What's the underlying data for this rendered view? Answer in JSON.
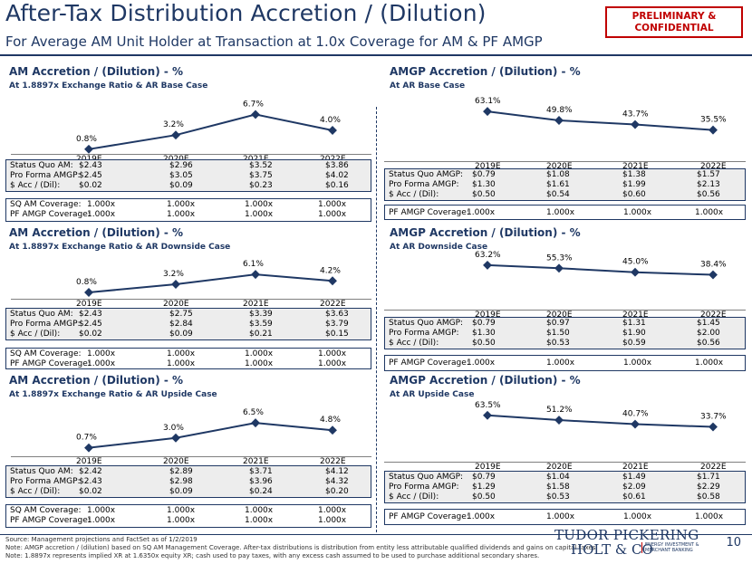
{
  "header": {
    "title": "After-Tax Distribution Accretion / (Dilution)",
    "subtitle": "For Average AM Unit Holder at Transaction at 1.0x Coverage for AM & PF AMGP",
    "stamp": [
      "PRELIMINARY &",
      "CONFIDENTIAL"
    ]
  },
  "colors": {
    "navy": "#1f3864",
    "red": "#c00000",
    "table_bg": "#ededed"
  },
  "panels": {
    "am_base": {
      "title": "AM Accretion / (Dilution) - %",
      "subtitle": "At 1.8897x Exchange Ratio & AR Base Case",
      "years": [
        "2019E",
        "2020E",
        "2021E",
        "2022E"
      ],
      "point_labels": [
        "0.8%",
        "3.2%",
        "6.7%",
        "4.0%"
      ],
      "rows": [
        {
          "label": "Status Quo AM:",
          "vals": [
            "$2.43",
            "$2.96",
            "$3.52",
            "$3.86"
          ]
        },
        {
          "label": "Pro Forma AMGP:",
          "vals": [
            "$2.45",
            "$3.05",
            "$3.75",
            "$4.02"
          ]
        },
        {
          "label": "$ Acc / (Dil):",
          "vals": [
            "$0.02",
            "$0.09",
            "$0.23",
            "$0.16"
          ]
        }
      ],
      "coverage": [
        {
          "label": "SQ AM Coverage:",
          "vals": [
            "1.000x",
            "1.000x",
            "1.000x",
            "1.000x"
          ]
        },
        {
          "label": "PF AMGP Coverage:",
          "vals": [
            "1.000x",
            "1.000x",
            "1.000x",
            "1.000x"
          ]
        }
      ]
    },
    "amgp_base": {
      "title": "AMGP Accretion / (Dilution) - %",
      "subtitle": "At AR Base Case",
      "years": [
        "2019E",
        "2020E",
        "2021E",
        "2022E"
      ],
      "point_labels": [
        "63.1%",
        "49.8%",
        "43.7%",
        "35.5%"
      ],
      "rows": [
        {
          "label": "Status Quo AMGP:",
          "vals": [
            "$0.79",
            "$1.08",
            "$1.38",
            "$1.57"
          ]
        },
        {
          "label": "Pro Forma AMGP:",
          "vals": [
            "$1.30",
            "$1.61",
            "$1.99",
            "$2.13"
          ]
        },
        {
          "label": "$ Acc / (Dil):",
          "vals": [
            "$0.50",
            "$0.54",
            "$0.60",
            "$0.56"
          ]
        }
      ],
      "coverage": [
        {
          "label": "PF AMGP Coverage:",
          "vals": [
            "1.000x",
            "1.000x",
            "1.000x",
            "1.000x"
          ]
        }
      ]
    },
    "am_down": {
      "title": "AM Accretion / (Dilution) - %",
      "subtitle": "At 1.8897x Exchange Ratio & AR Downside Case",
      "years": [
        "2019E",
        "2020E",
        "2021E",
        "2022E"
      ],
      "point_labels": [
        "0.8%",
        "3.2%",
        "6.1%",
        "4.2%"
      ],
      "rows": [
        {
          "label": "Status Quo AM:",
          "vals": [
            "$2.43",
            "$2.75",
            "$3.39",
            "$3.63"
          ]
        },
        {
          "label": "Pro Forma AMGP:",
          "vals": [
            "$2.45",
            "$2.84",
            "$3.59",
            "$3.79"
          ]
        },
        {
          "label": "$ Acc / (Dil):",
          "vals": [
            "$0.02",
            "$0.09",
            "$0.21",
            "$0.15"
          ]
        }
      ],
      "coverage": [
        {
          "label": "SQ AM Coverage:",
          "vals": [
            "1.000x",
            "1.000x",
            "1.000x",
            "1.000x"
          ]
        },
        {
          "label": "PF AMGP Coverage:",
          "vals": [
            "1.000x",
            "1.000x",
            "1.000x",
            "1.000x"
          ]
        }
      ]
    },
    "amgp_down": {
      "title": "AMGP Accretion / (Dilution) - %",
      "subtitle": "At AR Downside Case",
      "years": [
        "2019E",
        "2020E",
        "2021E",
        "2022E"
      ],
      "point_labels": [
        "63.2%",
        "55.3%",
        "45.0%",
        "38.4%"
      ],
      "rows": [
        {
          "label": "Status Quo AMGP:",
          "vals": [
            "$0.79",
            "$0.97",
            "$1.31",
            "$1.45"
          ]
        },
        {
          "label": "Pro Forma AMGP:",
          "vals": [
            "$1.30",
            "$1.50",
            "$1.90",
            "$2.00"
          ]
        },
        {
          "label": "$ Acc / (Dil):",
          "vals": [
            "$0.50",
            "$0.53",
            "$0.59",
            "$0.56"
          ]
        }
      ],
      "coverage": [
        {
          "label": "PF AMGP Coverage:",
          "vals": [
            "1.000x",
            "1.000x",
            "1.000x",
            "1.000x"
          ]
        }
      ]
    },
    "am_up": {
      "title": "AM Accretion / (Dilution) - %",
      "subtitle": "At 1.8897x Exchange Ratio & AR Upside Case",
      "years": [
        "2019E",
        "2020E",
        "2021E",
        "2022E"
      ],
      "point_labels": [
        "0.7%",
        "3.0%",
        "6.5%",
        "4.8%"
      ],
      "rows": [
        {
          "label": "Status Quo AM:",
          "vals": [
            "$2.42",
            "$2.89",
            "$3.71",
            "$4.12"
          ]
        },
        {
          "label": "Pro Forma AMGP:",
          "vals": [
            "$2.43",
            "$2.98",
            "$3.96",
            "$4.32"
          ]
        },
        {
          "label": "$ Acc / (Dil):",
          "vals": [
            "$0.02",
            "$0.09",
            "$0.24",
            "$0.20"
          ]
        }
      ],
      "coverage": [
        {
          "label": "SQ AM Coverage:",
          "vals": [
            "1.000x",
            "1.000x",
            "1.000x",
            "1.000x"
          ]
        },
        {
          "label": "PF AMGP Coverage:",
          "vals": [
            "1.000x",
            "1.000x",
            "1.000x",
            "1.000x"
          ]
        }
      ]
    },
    "amgp_up": {
      "title": "AMGP Accretion / (Dilution) - %",
      "subtitle": "At AR Upside Case",
      "years": [
        "2019E",
        "2020E",
        "2021E",
        "2022E"
      ],
      "point_labels": [
        "63.5%",
        "51.2%",
        "40.7%",
        "33.7%"
      ],
      "rows": [
        {
          "label": "Status Quo AMGP:",
          "vals": [
            "$0.79",
            "$1.04",
            "$1.49",
            "$1.71"
          ]
        },
        {
          "label": "Pro Forma AMGP:",
          "vals": [
            "$1.29",
            "$1.58",
            "$2.09",
            "$2.29"
          ]
        },
        {
          "label": "$ Acc / (Dil):",
          "vals": [
            "$0.50",
            "$0.53",
            "$0.61",
            "$0.58"
          ]
        }
      ],
      "coverage": [
        {
          "label": "PF AMGP Coverage:",
          "vals": [
            "1.000x",
            "1.000x",
            "1.000x",
            "1.000x"
          ]
        }
      ]
    }
  },
  "chart_data": [
    {
      "type": "line",
      "title": "AM Accretion / (Dilution) - %",
      "subtitle": "At 1.8897x Exchange Ratio & AR Base Case",
      "x": [
        "2019E",
        "2020E",
        "2021E",
        "2022E"
      ],
      "values": [
        0.8,
        3.2,
        6.7,
        4.0
      ],
      "ylim": [
        0,
        8
      ]
    },
    {
      "type": "line",
      "title": "AMGP Accretion / (Dilution) - %",
      "subtitle": "At AR Base Case",
      "x": [
        "2019E",
        "2020E",
        "2021E",
        "2022E"
      ],
      "values": [
        63.1,
        49.8,
        43.7,
        35.5
      ],
      "ylim": [
        0,
        70
      ]
    },
    {
      "type": "line",
      "title": "AM Accretion / (Dilution) - %",
      "subtitle": "At 1.8897x Exchange Ratio & AR Downside Case",
      "x": [
        "2019E",
        "2020E",
        "2021E",
        "2022E"
      ],
      "values": [
        0.8,
        3.2,
        6.1,
        4.2
      ],
      "ylim": [
        0,
        8
      ]
    },
    {
      "type": "line",
      "title": "AMGP Accretion / (Dilution) - %",
      "subtitle": "At AR Downside Case",
      "x": [
        "2019E",
        "2020E",
        "2021E",
        "2022E"
      ],
      "values": [
        63.2,
        55.3,
        45.0,
        38.4
      ],
      "ylim": [
        0,
        70
      ]
    },
    {
      "type": "line",
      "title": "AM Accretion / (Dilution) - %",
      "subtitle": "At 1.8897x Exchange Ratio & AR Upside Case",
      "x": [
        "2019E",
        "2020E",
        "2021E",
        "2022E"
      ],
      "values": [
        0.7,
        3.0,
        6.5,
        4.8
      ],
      "ylim": [
        0,
        8
      ]
    },
    {
      "type": "line",
      "title": "AMGP Accretion / (Dilution) - %",
      "subtitle": "At AR Upside Case",
      "x": [
        "2019E",
        "2020E",
        "2021E",
        "2022E"
      ],
      "values": [
        63.5,
        51.2,
        40.7,
        33.7
      ],
      "ylim": [
        0,
        70
      ]
    }
  ],
  "footer": {
    "source": "Source: Management projections and FactSet as of 1/2/2019",
    "note1": "Note: AMGP accretion / (dilution) based on SQ AM Management Coverage. After-tax distributions is distribution from entity less attributable qualified dividends and gains on capital taxes.",
    "note2": "Note: 1.8897x represents implied XR at 1.6350x equity XR; cash used to pay taxes, with any excess cash assumed to be used to purchase additional secondary shares.",
    "page": "10"
  },
  "logo": {
    "line1": "TUDOR PICKERING",
    "line2": "HOLT & CO",
    "tag1": "ENERGY INVESTMENT &",
    "tag2": "MERCHANT BANKING"
  }
}
